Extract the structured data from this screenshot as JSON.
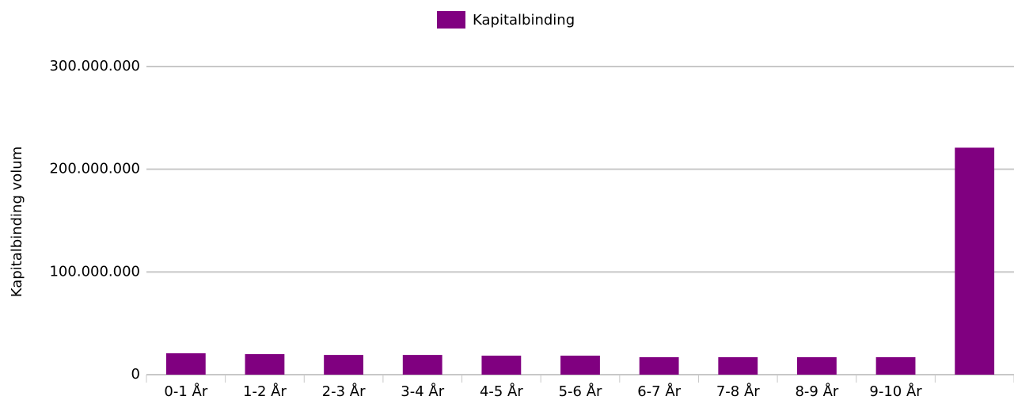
{
  "chart_data": {
    "type": "bar",
    "legend": "top",
    "y_axis_label": "Kapitalbinding volum",
    "categories": [
      "0-1 År",
      "1-2 År",
      "2-3 År",
      "3-4 År",
      "4-5 År",
      "5-6 År",
      "6-7 År",
      "7-8 År",
      "8-9 År",
      "9-10 År",
      null
    ],
    "series": [
      {
        "name": "Kapitalbinding",
        "color": "#800080",
        "values": [
          20800000,
          20000000,
          19200000,
          19200000,
          18500000,
          18500000,
          17000000,
          17000000,
          17000000,
          17000000,
          221000000
        ]
      }
    ],
    "ylim": [
      0,
      300000000
    ],
    "yticks": [
      0,
      {
        "value": 100000000,
        "label": "100.000.000"
      },
      {
        "value": 200000000,
        "label": "200.000.000"
      },
      {
        "value": 300000000,
        "label": "300.000.000"
      }
    ],
    "grid": true
  }
}
